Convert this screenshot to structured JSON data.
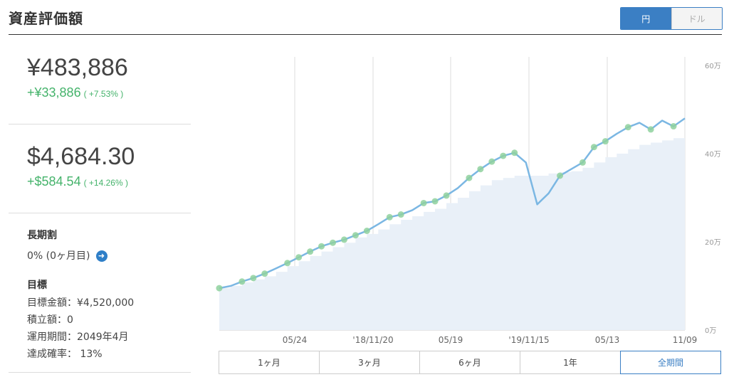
{
  "title": "資産評価額",
  "currency_toggle": {
    "jpy": "円",
    "usd": "ドル",
    "selected": "円"
  },
  "jpy_total": {
    "value": "¥483,886",
    "change": "+¥33,886",
    "pct": "( +7.53% )"
  },
  "usd_total": {
    "value": "$4,684.30",
    "change": "+$584.54",
    "pct": "( +14.26% )"
  },
  "long_term": {
    "title": "長期割",
    "value": "0% (0ヶ月目)"
  },
  "goal": {
    "title": "目標",
    "target_label": "目標金額：¥4,520,000",
    "accum_label": "積立額：0",
    "period_label": "運用期間：2049年4月",
    "probability_label": "達成確率： 13%"
  },
  "range_tabs": [
    "1ヶ月",
    "3ヶ月",
    "6ヶ月",
    "1年",
    "全期間"
  ],
  "range_selected": "全期間",
  "colors": {
    "accent": "#3b7fc4",
    "positive": "#45b36b",
    "line": "#7bb7e3",
    "area": "#e9f0f8",
    "marker": "#8fd19e"
  },
  "chart_data": {
    "type": "line",
    "x_tick_labels": [
      "05/24",
      "'18/11/20",
      "05/19",
      "'19/11/15",
      "05/13",
      "11/09"
    ],
    "y_tick_labels": [
      "60万",
      "40万",
      "20万",
      "0万"
    ],
    "ylim": [
      0,
      600000
    ],
    "grid": "vertical",
    "series": [
      {
        "kind": "line",
        "values": [
          95000,
          100000,
          110000,
          118000,
          128000,
          140000,
          152000,
          165000,
          178000,
          190000,
          198000,
          205000,
          215000,
          225000,
          240000,
          256000,
          262000,
          272000,
          288000,
          292000,
          305000,
          322000,
          345000,
          365000,
          382000,
          395000,
          402000,
          380000,
          285000,
          310000,
          350000,
          365000,
          380000,
          415000,
          428000,
          445000,
          460000,
          470000,
          455000,
          475000,
          462000,
          480000
        ]
      },
      {
        "kind": "area",
        "values": [
          95000,
          100000,
          108000,
          115000,
          122000,
          132000,
          145000,
          156000,
          168000,
          178000,
          188000,
          198000,
          210000,
          218000,
          228000,
          240000,
          250000,
          258000,
          268000,
          275000,
          288000,
          300000,
          315000,
          328000,
          340000,
          345000,
          350000,
          350000,
          350000,
          355000,
          358000,
          360000,
          368000,
          380000,
          392000,
          400000,
          410000,
          420000,
          425000,
          430000,
          435000,
          440000
        ]
      }
    ],
    "marker_indices": [
      0,
      2,
      3,
      4,
      6,
      7,
      8,
      9,
      10,
      11,
      12,
      13,
      15,
      16,
      18,
      19,
      20,
      22,
      23,
      24,
      25,
      26,
      30,
      32,
      33,
      34,
      36,
      38,
      40
    ]
  }
}
